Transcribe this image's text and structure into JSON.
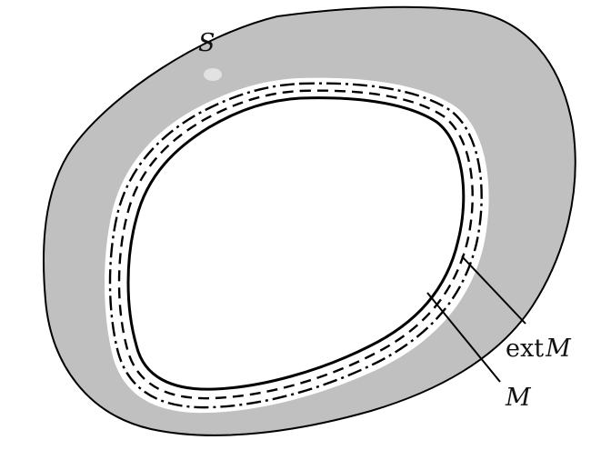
{
  "diagram": {
    "description_labels": {
      "region": "S",
      "curve": "M",
      "ext_operator": "ext",
      "ext_argument": "M"
    },
    "colors": {
      "region_fill": "#c0c0c0",
      "outline": "#000000",
      "background": "#ffffff"
    }
  }
}
